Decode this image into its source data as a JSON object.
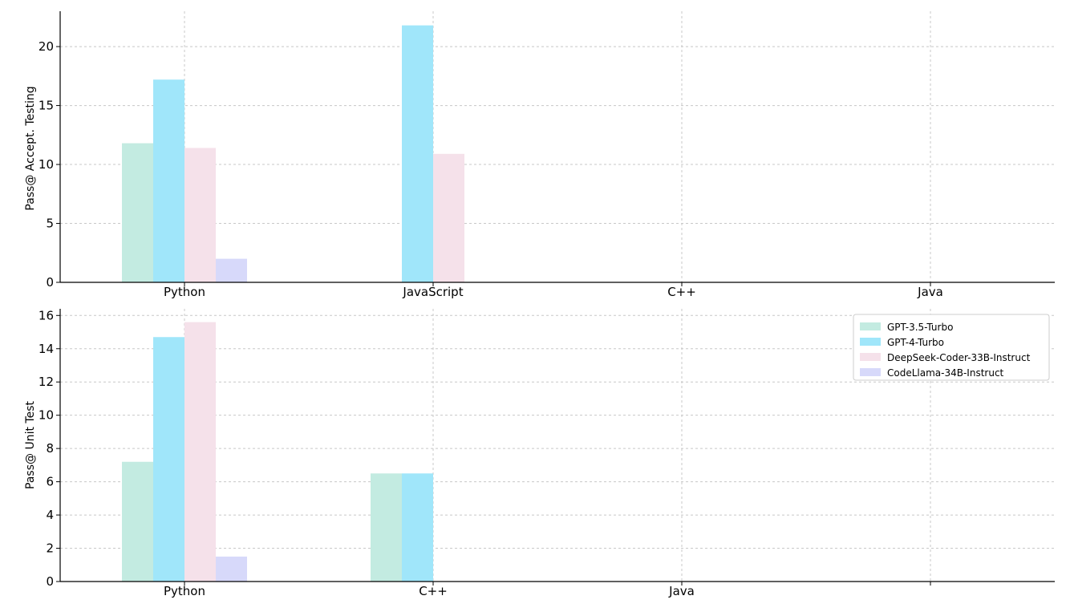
{
  "colors": {
    "GPT-3.5-Turbo": "#c3ebe1",
    "GPT-4-Turbo": "#a0e6fa",
    "DeepSeek-Coder-33B-Instruct": "#f5e1ea",
    "CodeLlama-34B-Instruct": "#d7d9fa"
  },
  "chart_data": [
    {
      "type": "bar",
      "title": "",
      "xlabel": "",
      "ylabel": "Pass@ Accept. Testing",
      "categories": [
        "Python",
        "JavaScript",
        "C++",
        "Java"
      ],
      "ylim": [
        0,
        23
      ],
      "yticks": [
        0,
        5,
        10,
        15,
        20
      ],
      "grid": true,
      "legend": null,
      "series": [
        {
          "name": "GPT-3.5-Turbo",
          "values": [
            11.8,
            0,
            0,
            0
          ]
        },
        {
          "name": "GPT-4-Turbo",
          "values": [
            17.2,
            21.8,
            0,
            0
          ]
        },
        {
          "name": "DeepSeek-Coder-33B-Instruct",
          "values": [
            11.4,
            10.9,
            0,
            0
          ]
        },
        {
          "name": "CodeLlama-34B-Instruct",
          "values": [
            2.0,
            0,
            0,
            0
          ]
        }
      ]
    },
    {
      "type": "bar",
      "title": "",
      "xlabel": "",
      "ylabel": "Pass@ Unit Test",
      "categories": [
        "Python",
        "C++",
        "Java",
        ""
      ],
      "ylim": [
        0,
        16.4
      ],
      "yticks": [
        0,
        2,
        4,
        6,
        8,
        10,
        12,
        14,
        16
      ],
      "grid": true,
      "legend": "top-right",
      "series": [
        {
          "name": "GPT-3.5-Turbo",
          "values": [
            7.2,
            6.5,
            0,
            0
          ]
        },
        {
          "name": "GPT-4-Turbo",
          "values": [
            14.7,
            6.5,
            0,
            0
          ]
        },
        {
          "name": "DeepSeek-Coder-33B-Instruct",
          "values": [
            15.6,
            0,
            0,
            0
          ]
        },
        {
          "name": "CodeLlama-34B-Instruct",
          "values": [
            1.5,
            0,
            0,
            0
          ]
        }
      ]
    }
  ]
}
